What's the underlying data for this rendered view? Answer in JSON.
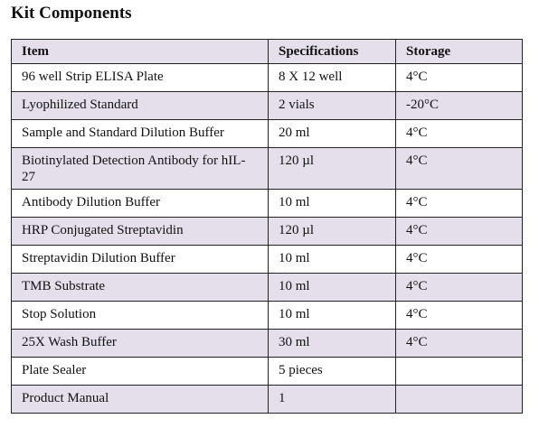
{
  "header": {
    "title": "Kit Components"
  },
  "table": {
    "columns": [
      "Item",
      "Specifications",
      "Storage"
    ],
    "rows": [
      [
        "96 well Strip ELISA Plate",
        "8 X 12 well",
        "4°C"
      ],
      [
        "Lyophilized Standard",
        "2 vials",
        "-20°C"
      ],
      [
        "Sample and Standard Dilution Buffer",
        "20 ml",
        "4°C"
      ],
      [
        "Biotinylated Detection Antibody  for hIL-27",
        "120 µl",
        "4°C"
      ],
      [
        "Antibody Dilution Buffer",
        "10 ml",
        "4°C"
      ],
      [
        "HRP Conjugated Streptavidin",
        "120 µl",
        "4°C"
      ],
      [
        "Streptavidin Dilution Buffer",
        "10 ml",
        "4°C"
      ],
      [
        "TMB Substrate",
        "10 ml",
        "4°C"
      ],
      [
        "Stop Solution",
        "10 ml",
        "4°C"
      ],
      [
        "25X Wash Buffer",
        "30 ml",
        "4°C"
      ],
      [
        "Plate Sealer",
        "5 pieces"
      ],
      [
        "Product Manual",
        "1"
      ]
    ]
  }
}
